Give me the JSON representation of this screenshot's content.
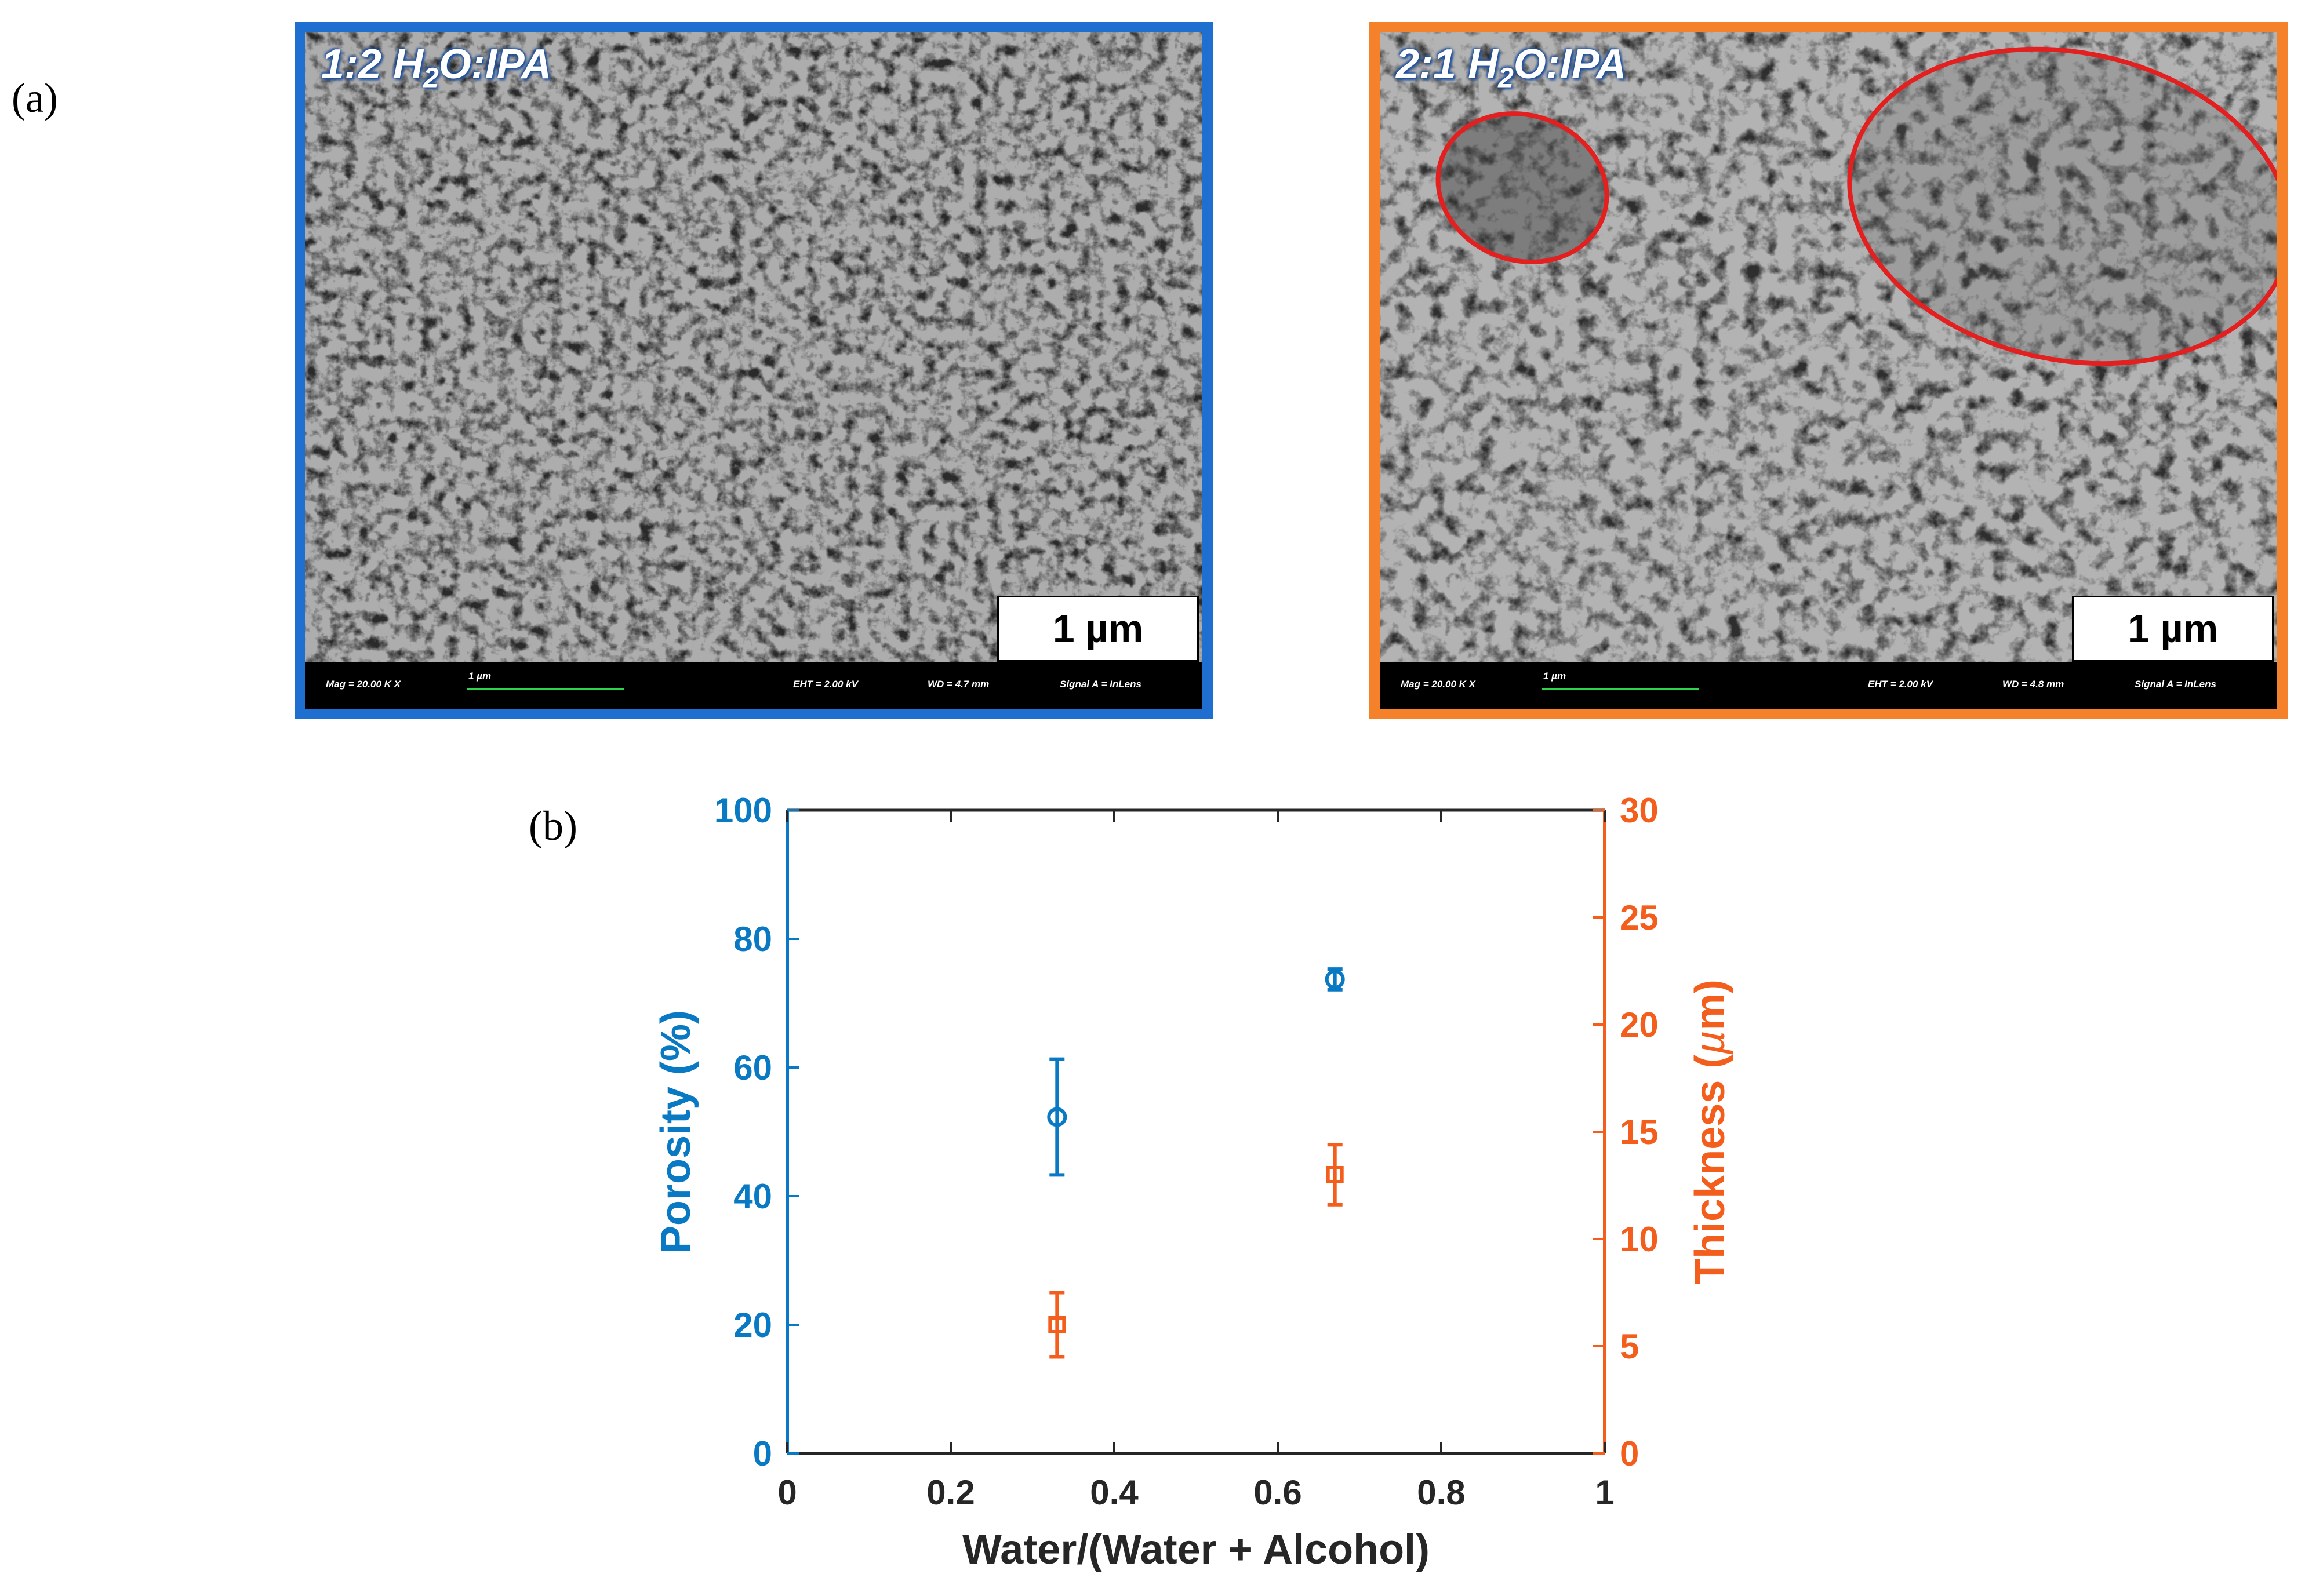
{
  "figure": {
    "panel_a_label": "(a)",
    "panel_b_label": "(b)"
  },
  "sem_images": [
    {
      "title_ratio": "1:2 H",
      "title_sub": "2",
      "title_rest": "O:IPA",
      "frame_color": "#1f6fd1",
      "scale_label": "1 µm",
      "info": {
        "mag": "Mag =   20.00 K X",
        "bar": "1 µm",
        "eht": "EHT =  2.00 kV",
        "wd": "WD =  4.7 mm",
        "signal": "Signal A = InLens"
      }
    },
    {
      "title_ratio": "2:1 H",
      "title_sub": "2",
      "title_rest": "O:IPA",
      "frame_color": "#f5822a",
      "scale_label": "1 µm",
      "highlight_color": "#e32020",
      "info": {
        "mag": "Mag =   20.00 K X",
        "bar": "1 µm",
        "eht": "EHT =  2.00 kV",
        "wd": "WD =  4.8 mm",
        "signal": "Signal A = InLens"
      }
    }
  ],
  "chart_data": {
    "type": "scatter",
    "xlabel": "Water/(Water + Alcohol)",
    "xlim": [
      0,
      1
    ],
    "xticks": [
      0,
      0.2,
      0.4,
      0.6,
      0.8,
      1
    ],
    "xtick_labels": [
      "0",
      "0.2",
      "0.4",
      "0.6",
      "0.8",
      "1"
    ],
    "y_left": {
      "label": "Porosity (%)",
      "lim": [
        0,
        100
      ],
      "ticks": [
        0,
        20,
        40,
        60,
        80,
        100
      ],
      "color": "#0a79c4"
    },
    "y_right": {
      "label_text": "Thickness (",
      "label_mu": "µ",
      "label_unit": "m)",
      "lim": [
        0,
        30
      ],
      "ticks": [
        0,
        5,
        10,
        15,
        20,
        25,
        30
      ],
      "color": "#f45e1c"
    },
    "series": [
      {
        "axis": "left",
        "marker": "circle",
        "color": "#0a79c4",
        "points": [
          {
            "x": 0.33,
            "y": 52.3,
            "err": 9.0
          },
          {
            "x": 0.67,
            "y": 73.7,
            "err": 1.6
          }
        ]
      },
      {
        "axis": "right",
        "marker": "square",
        "color": "#f45e1c",
        "points": [
          {
            "x": 0.33,
            "y": 6.0,
            "err": 1.5
          },
          {
            "x": 0.67,
            "y": 13.0,
            "err": 1.4
          }
        ]
      }
    ]
  }
}
